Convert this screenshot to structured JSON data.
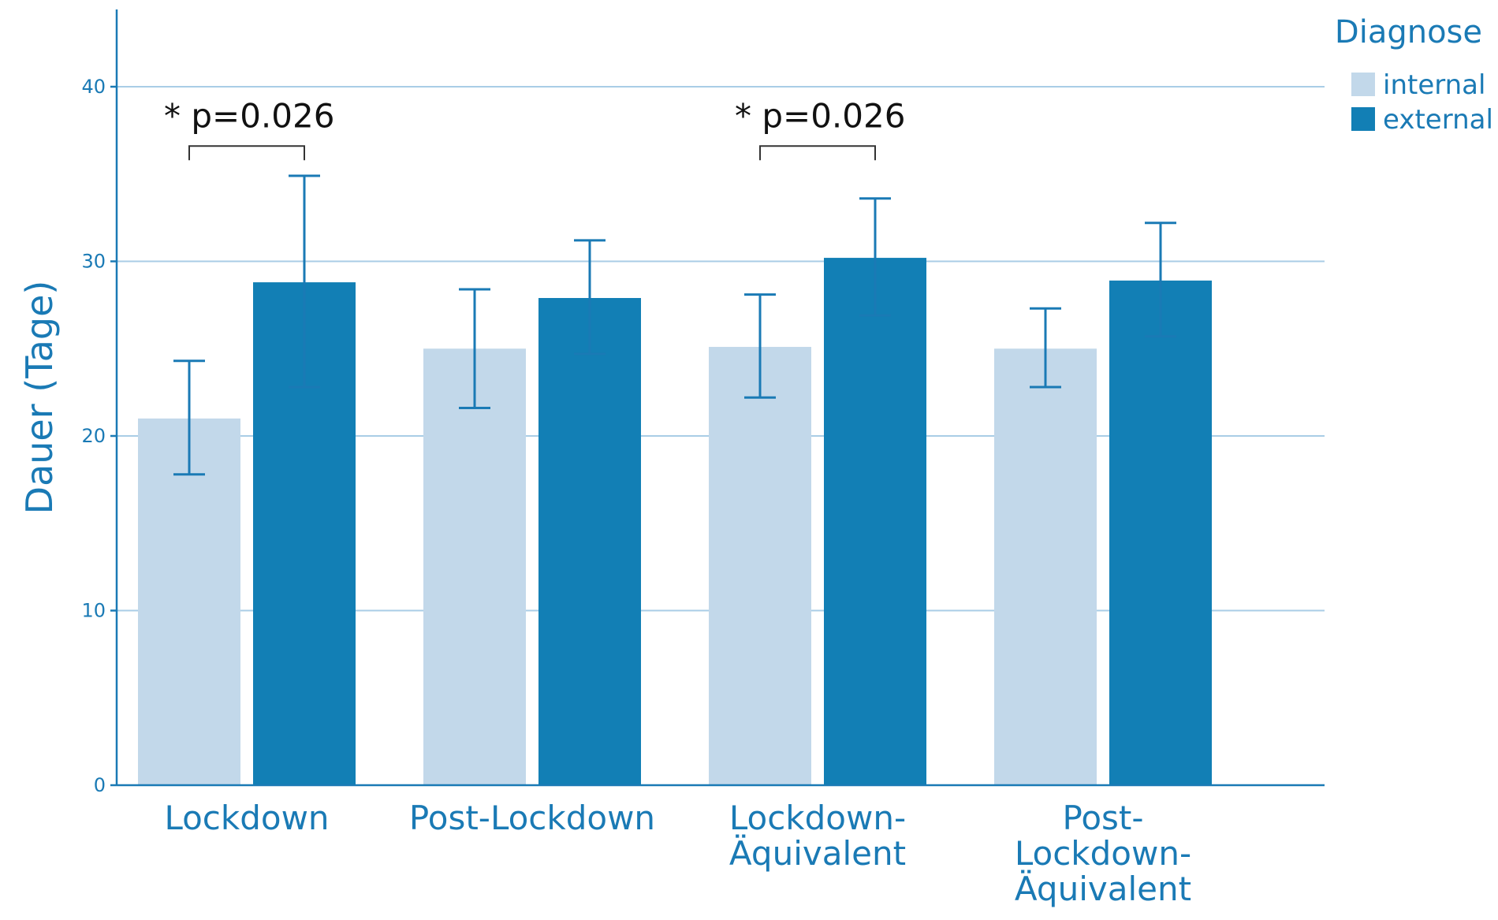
{
  "chart_data": {
    "type": "bar",
    "categories": [
      [
        "Lockdown"
      ],
      [
        "Post-Lockdown"
      ],
      [
        "Lockdown-",
        "Äquivalent"
      ],
      [
        "Post-",
        "Lockdown-",
        "Äquivalent"
      ]
    ],
    "series": [
      {
        "name": "internal",
        "color": "#c2d8ea",
        "values": [
          21,
          25,
          25.1,
          25
        ],
        "err_low": [
          17.8,
          21.6,
          22.2,
          22.8
        ],
        "err_high": [
          24.3,
          28.4,
          28.1,
          27.3
        ]
      },
      {
        "name": "external",
        "color": "#127fb5",
        "values": [
          28.8,
          27.9,
          30.2,
          28.9
        ],
        "err_low": [
          22.8,
          24.7,
          26.9,
          25.7
        ],
        "err_high": [
          34.9,
          31.2,
          33.6,
          32.2
        ]
      }
    ],
    "ylabel": "Dauer (Tage)",
    "xlabel": "",
    "ylim": [
      0,
      44
    ],
    "yticks": [
      0,
      10,
      20,
      30,
      40
    ],
    "grid": true,
    "legend": {
      "title": "Diagnose",
      "placement": "top-right"
    },
    "annotations": [
      {
        "text": "* p=0.026",
        "category_index": 0,
        "between": [
          "internal",
          "external"
        ],
        "bracket_y": 36.6,
        "text_y": 38.3
      },
      {
        "text": "* p=0.026",
        "category_index": 2,
        "between": [
          "internal",
          "external"
        ],
        "bracket_y": 36.6,
        "text_y": 38.3
      }
    ],
    "colors": {
      "axis": "#1a7ab5",
      "grid": "#a9cde6",
      "errorbar": "#1a7ab5",
      "bracket": "#333333"
    }
  }
}
